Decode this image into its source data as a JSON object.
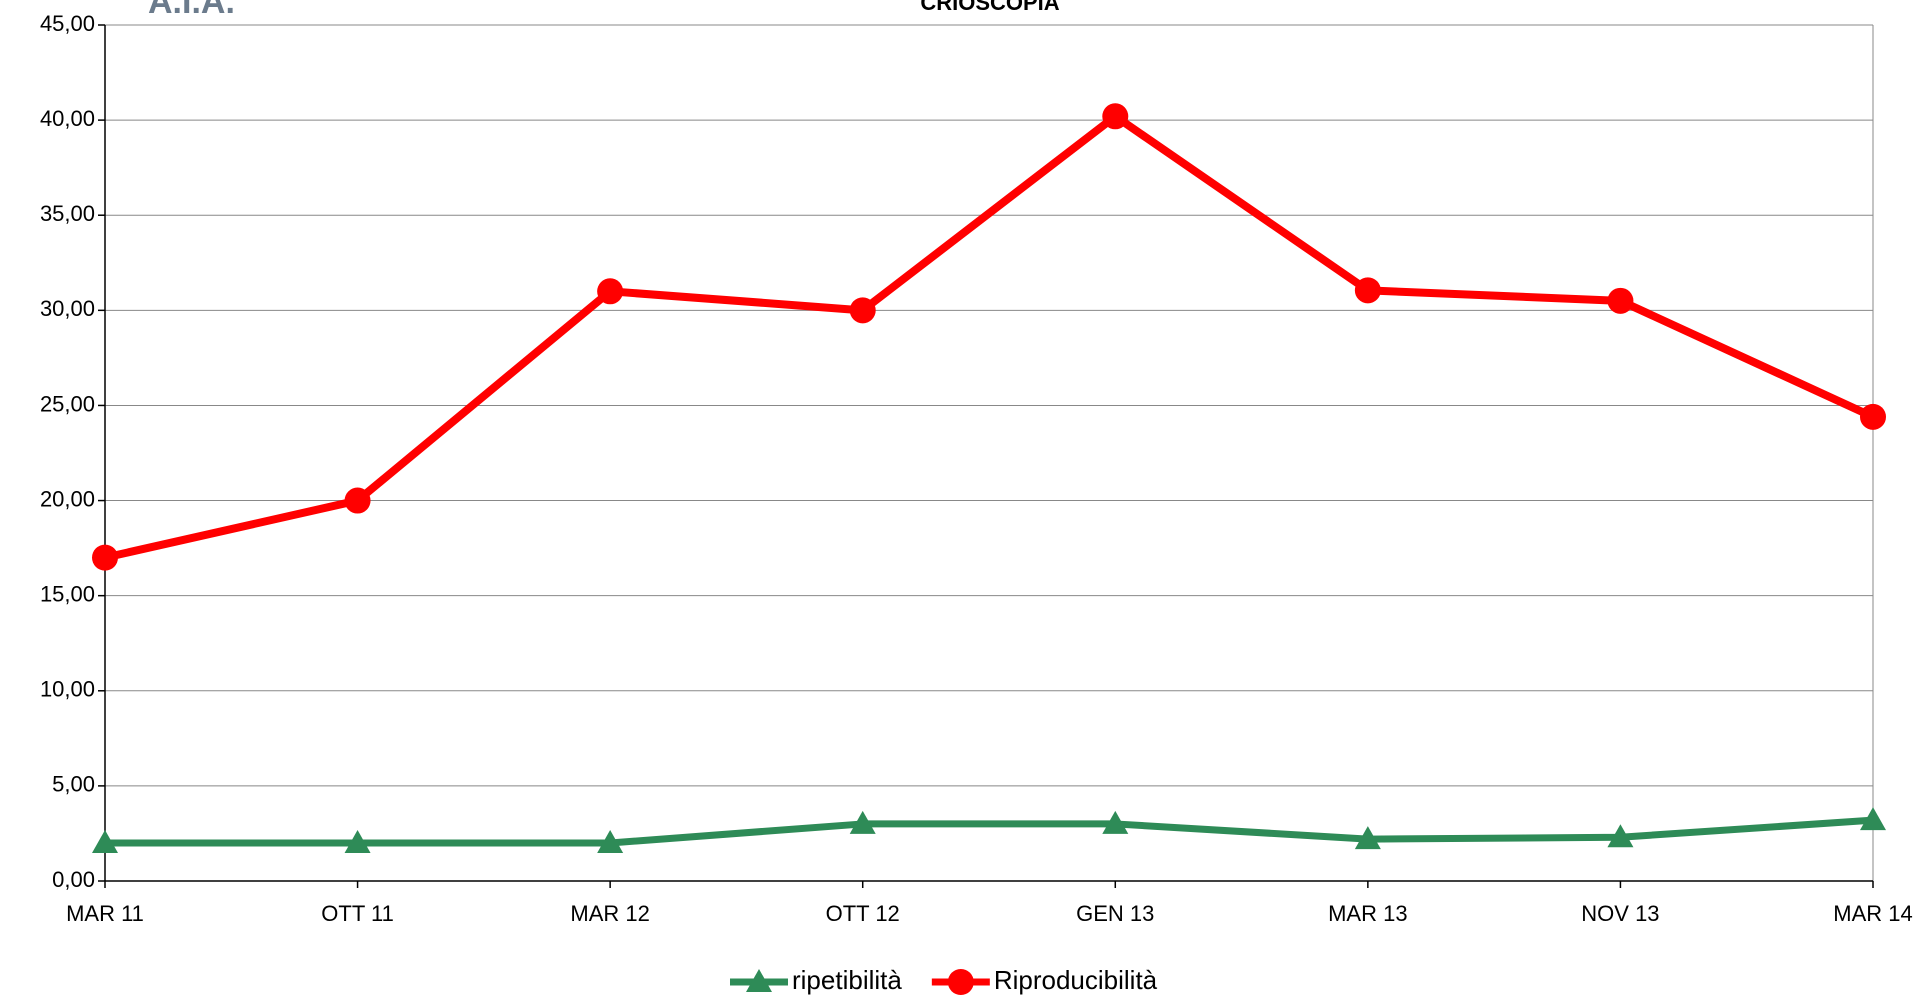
{
  "chart_data": {
    "type": "line",
    "title": "CRIOSCOPIA",
    "logo": "A.I.A.",
    "categories": [
      "MAR 11",
      "OTT 11",
      "MAR 12",
      "OTT 12",
      "GEN 13",
      "MAR 13",
      "NOV 13",
      "MAR 14"
    ],
    "series": [
      {
        "name": "ripetibilità",
        "color": "#2e8b57",
        "marker": "triangle",
        "values": [
          2.0,
          2.0,
          2.0,
          3.0,
          3.0,
          2.2,
          2.3,
          3.2
        ]
      },
      {
        "name": "Riproducibilità",
        "color": "#ff0000",
        "marker": "circle",
        "values": [
          17.0,
          20.0,
          31.0,
          30.0,
          40.2,
          31.05,
          30.5,
          24.4
        ]
      }
    ],
    "ylim": [
      0,
      45
    ],
    "yticks": [
      {
        "value": 0,
        "label": "0,00"
      },
      {
        "value": 5,
        "label": "5,00"
      },
      {
        "value": 10,
        "label": "10,00"
      },
      {
        "value": 15,
        "label": "15,00"
      },
      {
        "value": 20,
        "label": "20,00"
      },
      {
        "value": 25,
        "label": "25,00"
      },
      {
        "value": 30,
        "label": "30,00"
      },
      {
        "value": 35,
        "label": "35,00"
      },
      {
        "value": 40,
        "label": "40,00"
      },
      {
        "value": 45,
        "label": "45,00"
      }
    ],
    "grid": true,
    "legend": "bottom"
  }
}
